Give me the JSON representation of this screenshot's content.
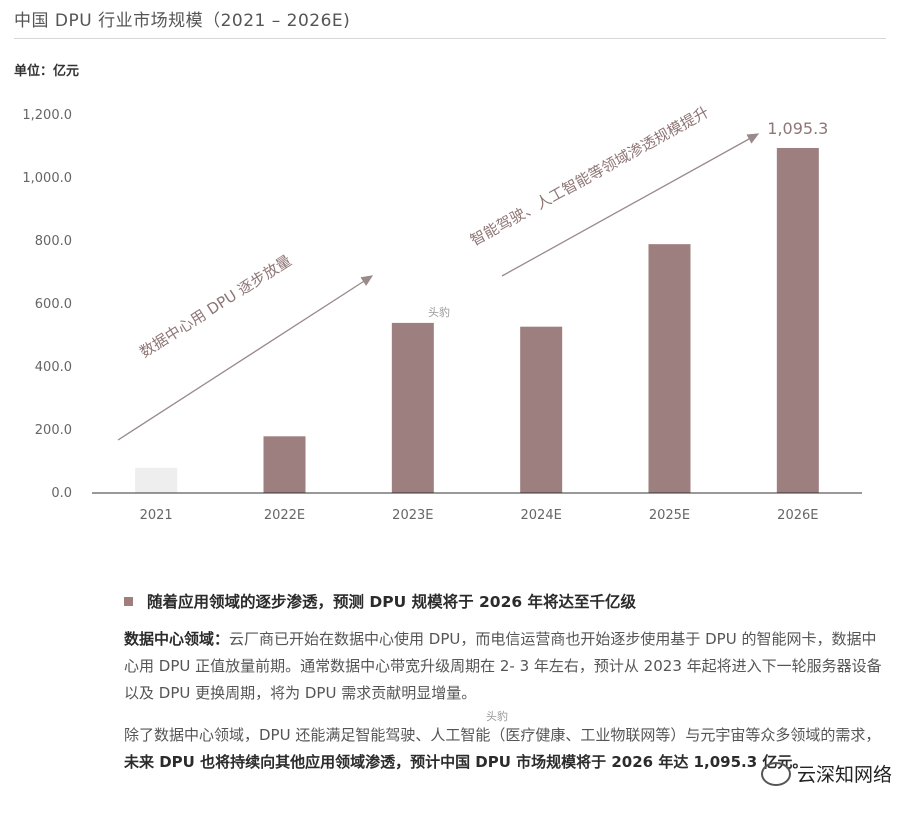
{
  "header": {
    "title": "中国 DPU 行业市场规模（2021 – 2026E)",
    "unit": "单位：亿元"
  },
  "chart_data": {
    "type": "bar",
    "categories": [
      "2021",
      "2022E",
      "2023E",
      "2024E",
      "2025E",
      "2026E"
    ],
    "values": [
      80,
      180,
      540,
      528,
      790,
      1095.3
    ],
    "ylim": [
      0,
      1200
    ],
    "yticks": [
      "0.0",
      "200.0",
      "400.0",
      "600.0",
      "800.0",
      "1,000.0",
      "1,200.0"
    ],
    "ytick_values": [
      0,
      200,
      400,
      600,
      800,
      1000,
      1200
    ],
    "data_labels": {
      "5": "1,095.3"
    },
    "annotations": [
      "数据中心用 DPU 逐步放量",
      "智能驾驶、人工智能等领域渗透规模提升"
    ],
    "grid": false,
    "colors": {
      "bar": "#9e7f7f",
      "first_bar": "#eeeeee",
      "annotation": "#8f7676",
      "arrow": "#9a8a8a"
    }
  },
  "text": {
    "heading": "随着应用领域的逐步渗透，预测 DPU 规模将于 2026 年将达至千亿级",
    "p1_bold": "数据中心领域：",
    "p1_rest": "云厂商已开始在数据中心使用 DPU，而电信运营商也开始逐步使用基于 DPU 的智能网卡，数据中心用 DPU 正值放量前期。通常数据中心带宽升级周期在 2- 3 年左右，预计从 2023 年起将进入下一轮服务器设备以及 DPU 更换周期，将为 DPU 需求贡献明显增量。",
    "p2_start": "除了数据中心领域，DPU 还能满足智能驾驶、人工智能（医疗健康、工业物联网等）与元宇宙等众多领域的需求，",
    "p2_bold": "未来 DPU 也将持续向其他应用领域渗透，预计中国 DPU 市场规模将于 2026 年达 1,095.3 亿元。"
  },
  "watermarks": {
    "chart": "头豹",
    "text": "头豹",
    "brand": "云深知网络"
  }
}
